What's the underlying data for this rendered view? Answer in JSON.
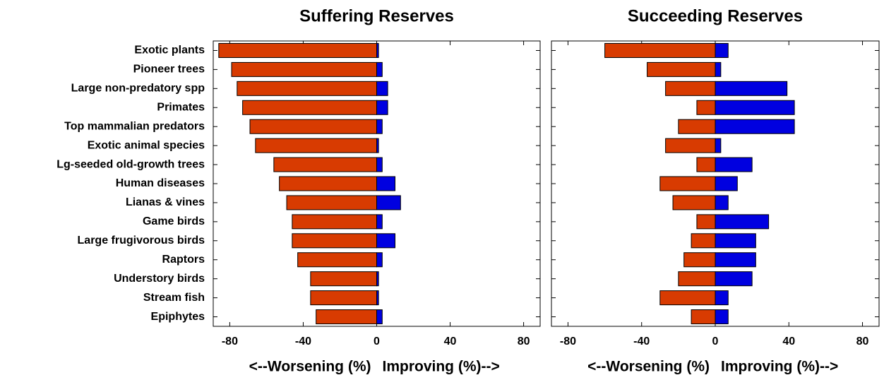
{
  "chart_data": [
    {
      "type": "bar",
      "orientation": "horizontal",
      "title": "Suffering Reserves",
      "categories": [
        "Exotic plants",
        "Pioneer trees",
        "Large non-predatory spp",
        "Primates",
        "Top mammalian predators",
        "Exotic animal species",
        "Lg-seeded old-growth trees",
        "Human diseases",
        "Lianas & vines",
        "Game birds",
        "Large frugivorous birds",
        "Raptors",
        "Understory birds",
        "Stream fish",
        "Epiphytes"
      ],
      "series": [
        {
          "color": "#d83b01",
          "values": [
            -86,
            -79,
            -76,
            -73,
            -69,
            -66,
            -56,
            -53,
            -49,
            -46,
            -46,
            -43,
            -36,
            -36,
            -33
          ]
        },
        {
          "color": "#0000e0",
          "values": [
            1,
            3,
            6,
            6,
            3,
            1,
            3,
            10,
            13,
            3,
            10,
            3,
            1,
            1,
            3
          ]
        }
      ],
      "xlim": [
        -89,
        89
      ],
      "xticks": [
        -80,
        -40,
        0,
        40,
        80
      ],
      "xlabel": [
        "<--Worsening (%)",
        "Improving (%)-->"
      ]
    },
    {
      "type": "bar",
      "orientation": "horizontal",
      "title": "Succeeding Reserves",
      "series": [
        {
          "color": "#d83b01",
          "values": [
            -60,
            -37,
            -27,
            -10,
            -20,
            -27,
            -10,
            -30,
            -23,
            -10,
            -13,
            -17,
            -20,
            -30,
            -13
          ]
        },
        {
          "color": "#0000e0",
          "values": [
            7,
            3,
            39,
            43,
            43,
            3,
            20,
            12,
            7,
            29,
            22,
            22,
            20,
            7,
            7
          ]
        }
      ],
      "xlim": [
        -89,
        89
      ],
      "xticks": [
        -80,
        -40,
        0,
        40,
        80
      ],
      "xlabel": [
        "<--Worsening (%)",
        "Improving (%)-->"
      ]
    }
  ]
}
